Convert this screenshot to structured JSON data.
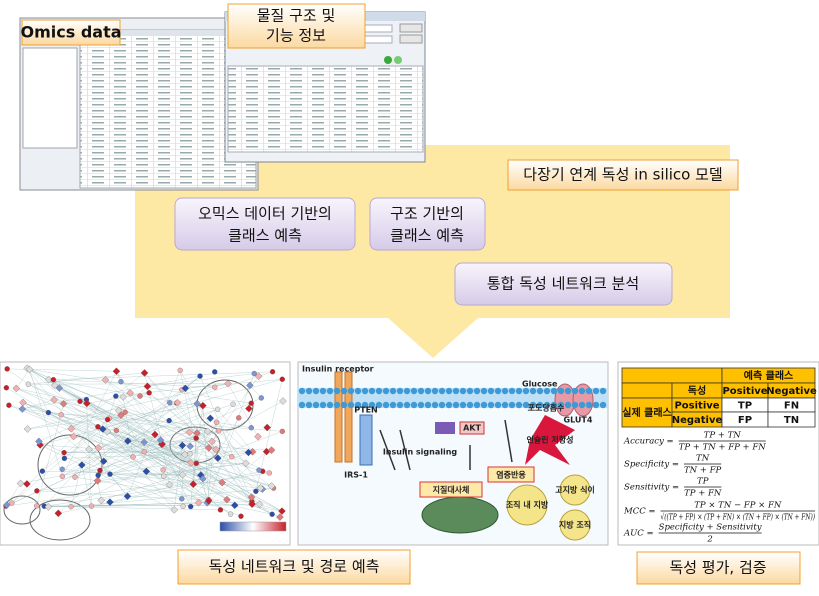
{
  "inputs": {
    "omics": "Omics data",
    "structure": [
      "물질 구조 및",
      "기능 정보"
    ]
  },
  "model": {
    "title": "다장기 연계 독성 in silico 모델",
    "steps": [
      [
        "오믹스 데이터 기반의",
        "클래스 예측"
      ],
      [
        "구조 기반의",
        "클래스 예측"
      ],
      [
        "통합 독성 네트워크 분석"
      ]
    ]
  },
  "pathway": {
    "labels": [
      "Insulin receptor",
      "Glucose",
      "GLUT4",
      "IRS-1",
      "PTEN",
      "AKT",
      "Insulin signaling",
      "포도당흡수",
      "인슐린 저항성",
      "염증반응",
      "지질대사체",
      "조직 내 지방",
      "고지방 식이",
      "지방 조직"
    ]
  },
  "confusion_table": {
    "header": "예측 클래스",
    "row_header": "실제 클래스",
    "col_label": "독성",
    "columns": [
      "Positive",
      "Negative"
    ],
    "rows": [
      {
        "label": "Positive",
        "cells": [
          "TP",
          "FN"
        ]
      },
      {
        "label": "Negative",
        "cells": [
          "FP",
          "TN"
        ]
      }
    ]
  },
  "formulas": [
    {
      "name": "Accuracy =",
      "numerator": "TP + TN",
      "denominator": "TP + TN + FP + FN"
    },
    {
      "name": "Specificity =",
      "numerator": "TN",
      "denominator": "TN + FP"
    },
    {
      "name": "Sensitivity =",
      "numerator": "TP",
      "denominator": "TP + FN"
    },
    {
      "name": "MCC =",
      "numerator": "TP × TN − FP × FN",
      "denominator": "√((TP + FP) × (TP + FN) × (TN + FP) × (TN + FN))"
    },
    {
      "name": "AUC =",
      "numerator": "Specificity + Sensitivity",
      "denominator": "2"
    }
  ],
  "outputs": {
    "network_caption": "독성 네트워크 및 경로 예측",
    "evaluation_caption": "독성 평가, 검증"
  }
}
